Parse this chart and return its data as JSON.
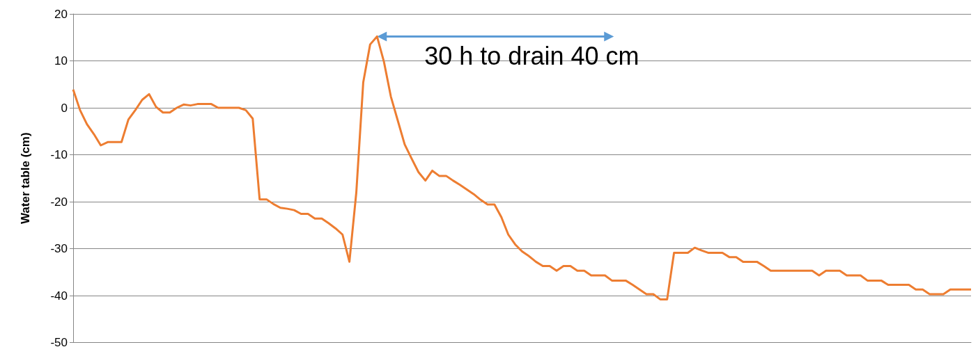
{
  "chart_data": {
    "type": "line",
    "ylabel": "Water table (cm)",
    "annotations": [
      "30 h to drain 40 cm"
    ],
    "categories": [
      null,
      null,
      null,
      null,
      null,
      null,
      null,
      null,
      null,
      null,
      null,
      null,
      null,
      null,
      null,
      null,
      null,
      null,
      null,
      null,
      null,
      null,
      null,
      null,
      null,
      null,
      null,
      null,
      null,
      null,
      null,
      null,
      null,
      null,
      null,
      null,
      null,
      null,
      null,
      null,
      null,
      null,
      null,
      null,
      null,
      null,
      null,
      null,
      null,
      null,
      null,
      null,
      null,
      null,
      null,
      null,
      null,
      null,
      null,
      null,
      null,
      null,
      null,
      null,
      null,
      null,
      null,
      null,
      null,
      null,
      null,
      null,
      null,
      null,
      null,
      null,
      null,
      null,
      null,
      null,
      null,
      null,
      null,
      null,
      null,
      null,
      null,
      null,
      null,
      null,
      null,
      null,
      null,
      null,
      null,
      null,
      null,
      null,
      null,
      null,
      null,
      null,
      null,
      null,
      null,
      null,
      null,
      null,
      null,
      null,
      null,
      null,
      null,
      null,
      null,
      null,
      null,
      null,
      null,
      null,
      null,
      null,
      null,
      null,
      null,
      null,
      null,
      null,
      null,
      null,
      null
    ],
    "series": [
      {
        "color": "#ed7d31",
        "values": [
          3.9,
          -0.5,
          -3.5,
          -5.6,
          -8,
          -7.3,
          -7.3,
          -7.3,
          -2.5,
          -0.5,
          1.7,
          2.9,
          0.2,
          -1,
          -1,
          0,
          0.7,
          0.5,
          0.8,
          0.8,
          0.8,
          0,
          0,
          0,
          0,
          -0.5,
          -2.3,
          -19.5,
          -19.5,
          -20.5,
          -21.3,
          -21.5,
          -21.8,
          -22.6,
          -22.6,
          -23.6,
          -23.6,
          -24.6,
          -25.7,
          -27,
          -32.8,
          -18,
          5.4,
          13.5,
          15.2,
          9.8,
          2.4,
          -2.7,
          -7.8,
          -10.8,
          -13.7,
          -15.5,
          -13.4,
          -14.5,
          -14.5,
          -15.5,
          -16.4,
          -17.4,
          -18.4,
          -19.6,
          -20.6,
          -20.6,
          -23.3,
          -27,
          -29.1,
          -30.6,
          -31.6,
          -32.8,
          -33.7,
          -33.7,
          -34.7,
          -33.7,
          -33.7,
          -34.7,
          -34.7,
          -35.7,
          -35.7,
          -35.7,
          -36.8,
          -36.8,
          -36.8,
          -37.7,
          -38.7,
          -39.7,
          -39.7,
          -40.8,
          -40.8,
          -30.9,
          -30.9,
          -30.9,
          -29.8,
          -30.4,
          -30.9,
          -30.9,
          -30.9,
          -31.8,
          -31.8,
          -32.8,
          -32.8,
          -32.8,
          -33.7,
          -34.7,
          -34.7,
          -34.7,
          -34.7,
          -34.7,
          -34.7,
          -34.7,
          -35.7,
          -34.7,
          -34.7,
          -34.7,
          -35.7,
          -35.7,
          -35.7,
          -36.8,
          -36.8,
          -36.8,
          -37.7,
          -37.7,
          -37.7,
          -37.7,
          -38.7,
          -38.7,
          -39.7,
          -39.7,
          -39.7,
          -38.7,
          -38.7,
          -38.7,
          -38.7
        ]
      }
    ],
    "ylim": [
      -50,
      20
    ],
    "yticks": [
      -50,
      -40,
      -30,
      -20,
      -10,
      0,
      10,
      20
    ],
    "grid": "y",
    "marker": "none",
    "line_style": "solid",
    "tick_labels": "y"
  }
}
